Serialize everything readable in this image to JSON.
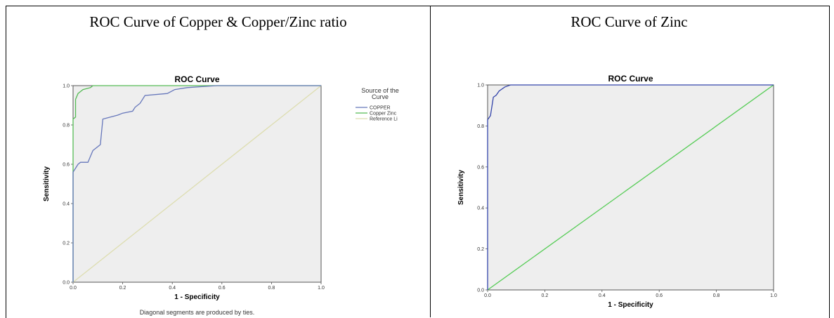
{
  "panels": [
    {
      "title": "ROC Curve of Copper & Copper/Zinc ratio"
    },
    {
      "title": "ROC Curve of Zinc"
    }
  ],
  "colors": {
    "copper": "#6677bb",
    "copper_zinc": "#55bb55",
    "reference": "#ddddb0",
    "zinc": "#3344aa",
    "zinc_reference": "#55cc55",
    "plot_bg": "#eeeeee"
  },
  "chart_data": [
    {
      "type": "line",
      "title": "ROC Curve",
      "xlabel": "1 - Specificity",
      "ylabel": "Sensitivity",
      "xlim": [
        0,
        1
      ],
      "ylim": [
        0,
        1
      ],
      "x_ticks": [
        "0.0",
        "0.2",
        "0.4",
        "0.6",
        "0.8",
        "1.0"
      ],
      "y_ticks": [
        "0.0",
        "0.2",
        "0.4",
        "0.6",
        "0.8",
        "1.0"
      ],
      "grid": false,
      "legend_title": "Source of the Curve",
      "legend_position": "right",
      "note": "Diagonal segments are produced by ties.",
      "series": [
        {
          "name": "COPPER",
          "color_key": "copper",
          "points": [
            [
              0,
              0
            ],
            [
              0,
              0.56
            ],
            [
              0.01,
              0.58
            ],
            [
              0.02,
              0.6
            ],
            [
              0.03,
              0.61
            ],
            [
              0.06,
              0.61
            ],
            [
              0.07,
              0.64
            ],
            [
              0.08,
              0.67
            ],
            [
              0.09,
              0.68
            ],
            [
              0.11,
              0.7
            ],
            [
              0.12,
              0.83
            ],
            [
              0.18,
              0.85
            ],
            [
              0.2,
              0.86
            ],
            [
              0.24,
              0.87
            ],
            [
              0.25,
              0.89
            ],
            [
              0.27,
              0.91
            ],
            [
              0.29,
              0.95
            ],
            [
              0.38,
              0.96
            ],
            [
              0.41,
              0.98
            ],
            [
              0.46,
              0.99
            ],
            [
              0.52,
              0.995
            ],
            [
              0.58,
              1.0
            ],
            [
              1.0,
              1.0
            ]
          ]
        },
        {
          "name": "Copper Zinc",
          "color_key": "copper_zinc",
          "points": [
            [
              0,
              0
            ],
            [
              0,
              0.83
            ],
            [
              0.01,
              0.84
            ],
            [
              0.01,
              0.93
            ],
            [
              0.02,
              0.96
            ],
            [
              0.03,
              0.97
            ],
            [
              0.04,
              0.98
            ],
            [
              0.07,
              0.99
            ],
            [
              0.08,
              1.0
            ],
            [
              1.0,
              1.0
            ]
          ]
        },
        {
          "name": "Reference Li",
          "color_key": "reference",
          "points": [
            [
              0,
              0
            ],
            [
              1,
              1
            ]
          ]
        }
      ]
    },
    {
      "type": "line",
      "title": "ROC Curve",
      "xlabel": "1 - Specificity",
      "ylabel": "Sensitivity",
      "xlim": [
        0,
        1
      ],
      "ylim": [
        0,
        1
      ],
      "x_ticks": [
        "0.0",
        "0.2",
        "0.4",
        "0.6",
        "0.8",
        "1.0"
      ],
      "y_ticks": [
        "0.0",
        "0.2",
        "0.4",
        "0.6",
        "0.8",
        "1.0"
      ],
      "grid": false,
      "series": [
        {
          "color_key": "zinc",
          "points": [
            [
              0,
              0
            ],
            [
              0,
              0.83
            ],
            [
              0.01,
              0.85
            ],
            [
              0.02,
              0.94
            ],
            [
              0.03,
              0.95
            ],
            [
              0.04,
              0.97
            ],
            [
              0.06,
              0.99
            ],
            [
              0.08,
              1.0
            ],
            [
              1.0,
              1.0
            ]
          ]
        },
        {
          "color_key": "zinc_reference",
          "points": [
            [
              0,
              0
            ],
            [
              1,
              1
            ]
          ]
        }
      ]
    }
  ]
}
